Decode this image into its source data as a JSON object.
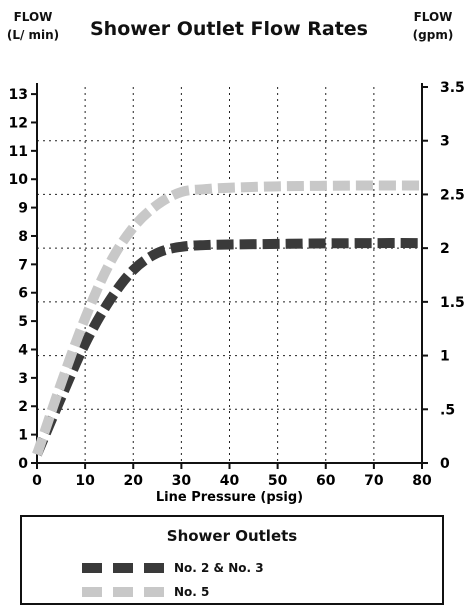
{
  "chart_data": {
    "type": "line",
    "title": "Shower Outlet Flow Rates",
    "ylabel_left": "FLOW\n(L/ min)",
    "ylabel_right": "FLOW\n(gpm)",
    "xlabel": "Line Pressure (psig)",
    "xlim": [
      0,
      80
    ],
    "ylim": [
      0,
      13.25
    ],
    "ylim_right": [
      0,
      3.5
    ],
    "x_ticks": [
      "0",
      "10",
      "20",
      "30",
      "40",
      "50",
      "60",
      "70",
      "80"
    ],
    "y_ticks_left": [
      "0",
      "1",
      "2",
      "3",
      "4",
      "5",
      "6",
      "7",
      "8",
      "9",
      "10",
      "11",
      "12",
      "13"
    ],
    "y_ticks_right": [
      "0",
      ".5",
      "1",
      "1.5",
      "2",
      "2.5",
      "3",
      "3.5"
    ],
    "grid": true,
    "series": [
      {
        "name": "No. 2 & No. 3",
        "color": "#3a3a3a",
        "x": [
          0,
          5,
          10,
          15,
          20,
          25,
          30,
          35,
          40,
          50,
          60,
          70,
          80
        ],
        "y": [
          0.3,
          2.3,
          4.2,
          5.7,
          6.8,
          7.4,
          7.62,
          7.68,
          7.7,
          7.72,
          7.74,
          7.75,
          7.75
        ]
      },
      {
        "name": "No. 5",
        "color": "#c8c8c8",
        "x": [
          0,
          5,
          10,
          15,
          20,
          25,
          30,
          35,
          40,
          50,
          60,
          70,
          80
        ],
        "y": [
          0.3,
          2.8,
          5.1,
          7.0,
          8.3,
          9.1,
          9.55,
          9.65,
          9.7,
          9.75,
          9.77,
          9.78,
          9.78
        ]
      }
    ],
    "legend": {
      "title": "Shower Outlets",
      "placement": "bottom",
      "entries": [
        "No. 2 & No. 3",
        "No. 5"
      ]
    }
  }
}
